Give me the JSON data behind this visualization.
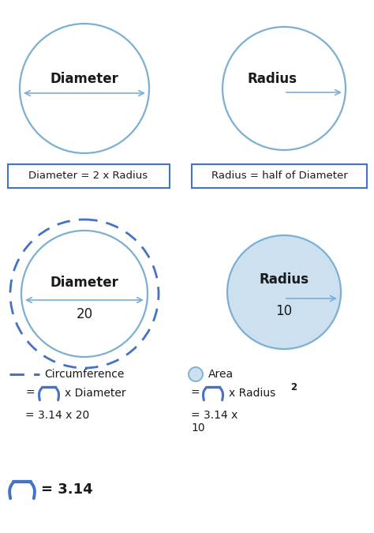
{
  "bg_color": "#ffffff",
  "circle_color": "#7bafd4",
  "circle_lw": 1.6,
  "dashed_circle_color": "#4472c4",
  "filled_circle_color": "#cce0f0",
  "arrow_color": "#7bafd4",
  "box_border_color": "#4472c4",
  "text_color": "#1a1a1a",
  "pi_color": "#4472c4",
  "title_top_left": "Diameter",
  "title_top_right": "Radius",
  "formula_left": "Diameter = 2 x Radius",
  "formula_right": "Radius = half of Diameter",
  "diameter_label": "20",
  "radius_label": "10",
  "pi_bottom": "= 3.14"
}
